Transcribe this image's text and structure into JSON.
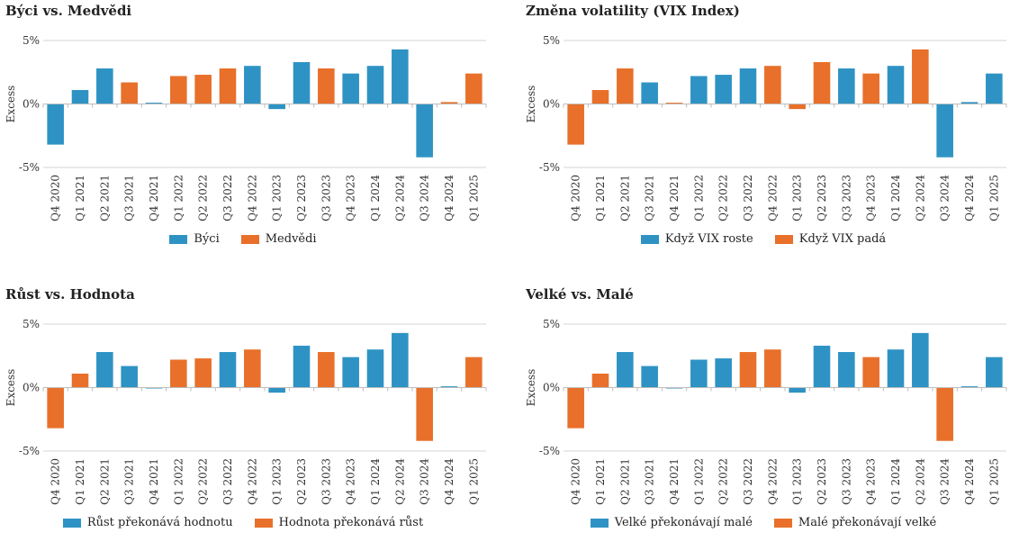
{
  "colors": {
    "blue": "#2e93c4",
    "orange": "#e8702a"
  },
  "charts": [
    {
      "title": "Býci vs. Medvědi",
      "ylabel": "Excess",
      "legend": [
        {
          "label": "Býci",
          "color": "#2e93c4"
        },
        {
          "label": "Medvědi",
          "color": "#e8702a"
        }
      ]
    },
    {
      "title": "Změna volatility (VIX Index)",
      "ylabel": "Excess",
      "legend": [
        {
          "label": "Když VIX roste",
          "color": "#2e93c4"
        },
        {
          "label": "Když VIX padá",
          "color": "#e8702a"
        }
      ]
    },
    {
      "title": "Růst vs. Hodnota",
      "ylabel": "Excess",
      "legend": [
        {
          "label": "Růst překonává hodnotu",
          "color": "#2e93c4"
        },
        {
          "label": "Hodnota překonává růst",
          "color": "#e8702a"
        }
      ]
    },
    {
      "title": "Velké vs. Malé",
      "ylabel": "Excess",
      "legend": [
        {
          "label": "Velké překonávají malé",
          "color": "#2e93c4"
        },
        {
          "label": "Malé překonávají velké",
          "color": "#e8702a"
        }
      ]
    }
  ],
  "chart_data": [
    {
      "type": "bar",
      "title": "Býci vs. Medvědi",
      "ylabel": "Excess",
      "ylim": [
        -5,
        5
      ],
      "yticks": [
        "5%",
        "0%",
        "-5%"
      ],
      "categories": [
        "Q4 2020",
        "Q1 2021",
        "Q2 2021",
        "Q3 2021",
        "Q4 2021",
        "Q1 2022",
        "Q2 2022",
        "Q3 2022",
        "Q4 2022",
        "Q1 2023",
        "Q2 2023",
        "Q3 2023",
        "Q4 2023",
        "Q1 2024",
        "Q2 2024",
        "Q3 2024",
        "Q4 2024",
        "Q1 2025"
      ],
      "values": [
        -3.2,
        1.1,
        2.8,
        1.7,
        0.1,
        2.2,
        2.3,
        2.8,
        3.0,
        -0.4,
        3.3,
        2.8,
        2.4,
        3.0,
        4.3,
        -4.2,
        0.15,
        2.4
      ],
      "groups": [
        "a",
        "a",
        "a",
        "b",
        "a",
        "b",
        "b",
        "b",
        "a",
        "a",
        "a",
        "b",
        "a",
        "a",
        "a",
        "a",
        "b",
        "b"
      ],
      "series": [
        {
          "name": "Býci"
        },
        {
          "name": "Medvědi"
        }
      ],
      "grid": false,
      "legend_position": "bottom"
    },
    {
      "type": "bar",
      "title": "Změna volatility (VIX Index)",
      "ylabel": "Excess",
      "ylim": [
        -5,
        5
      ],
      "yticks": [
        "5%",
        "0%",
        "-5%"
      ],
      "categories": [
        "Q4 2020",
        "Q1 2021",
        "Q2 2021",
        "Q3 2021",
        "Q4 2021",
        "Q1 2022",
        "Q2 2022",
        "Q3 2022",
        "Q4 2022",
        "Q1 2023",
        "Q2 2023",
        "Q3 2023",
        "Q4 2023",
        "Q1 2024",
        "Q2 2024",
        "Q3 2024",
        "Q4 2024",
        "Q1 2025"
      ],
      "values": [
        -3.2,
        1.1,
        2.8,
        1.7,
        0.1,
        2.2,
        2.3,
        2.8,
        3.0,
        -0.4,
        3.3,
        2.8,
        2.4,
        3.0,
        4.3,
        -4.2,
        0.15,
        2.4
      ],
      "groups": [
        "b",
        "b",
        "b",
        "a",
        "b",
        "a",
        "a",
        "a",
        "b",
        "b",
        "b",
        "a",
        "b",
        "a",
        "b",
        "a",
        "a",
        "a"
      ],
      "series": [
        {
          "name": "Když VIX roste"
        },
        {
          "name": "Když VIX padá"
        }
      ],
      "grid": false,
      "legend_position": "bottom"
    },
    {
      "type": "bar",
      "title": "Růst vs. Hodnota",
      "ylabel": "Excess",
      "ylim": [
        -5,
        5
      ],
      "yticks": [
        "5%",
        "0%",
        "-5%"
      ],
      "categories": [
        "Q4 2020",
        "Q1 2021",
        "Q2 2021",
        "Q3 2021",
        "Q4 2021",
        "Q1 2022",
        "Q2 2022",
        "Q3 2022",
        "Q4 2022",
        "Q1 2023",
        "Q2 2023",
        "Q3 2023",
        "Q4 2023",
        "Q1 2024",
        "Q2 2024",
        "Q3 2024",
        "Q4 2024",
        "Q1 2025"
      ],
      "values": [
        -3.2,
        1.1,
        2.8,
        1.7,
        0.0,
        2.2,
        2.3,
        2.8,
        3.0,
        -0.4,
        3.3,
        2.8,
        2.4,
        3.0,
        4.3,
        -4.2,
        0.1,
        2.4
      ],
      "groups": [
        "b",
        "b",
        "a",
        "a",
        "a",
        "b",
        "b",
        "a",
        "b",
        "a",
        "a",
        "b",
        "a",
        "a",
        "a",
        "b",
        "a",
        "b"
      ],
      "series": [
        {
          "name": "Růst překonává hodnotu"
        },
        {
          "name": "Hodnota překonává růst"
        }
      ],
      "grid": false,
      "legend_position": "bottom"
    },
    {
      "type": "bar",
      "title": "Velké vs. Malé",
      "ylabel": "Excess",
      "ylim": [
        -5,
        5
      ],
      "yticks": [
        "5%",
        "0%",
        "-5%"
      ],
      "categories": [
        "Q4 2020",
        "Q1 2021",
        "Q2 2021",
        "Q3 2021",
        "Q4 2021",
        "Q1 2022",
        "Q2 2022",
        "Q3 2022",
        "Q4 2022",
        "Q1 2023",
        "Q2 2023",
        "Q3 2023",
        "Q4 2023",
        "Q1 2024",
        "Q2 2024",
        "Q3 2024",
        "Q4 2024",
        "Q1 2025"
      ],
      "values": [
        -3.2,
        1.1,
        2.8,
        1.7,
        0.0,
        2.2,
        2.3,
        2.8,
        3.0,
        -0.4,
        3.3,
        2.8,
        2.4,
        3.0,
        4.3,
        -4.2,
        0.1,
        2.4
      ],
      "groups": [
        "b",
        "b",
        "a",
        "a",
        "a",
        "a",
        "a",
        "b",
        "b",
        "a",
        "a",
        "a",
        "b",
        "a",
        "a",
        "b",
        "a",
        "a"
      ],
      "series": [
        {
          "name": "Velké překonávají malé"
        },
        {
          "name": "Malé překonávají velké"
        }
      ],
      "grid": false,
      "legend_position": "bottom"
    }
  ]
}
